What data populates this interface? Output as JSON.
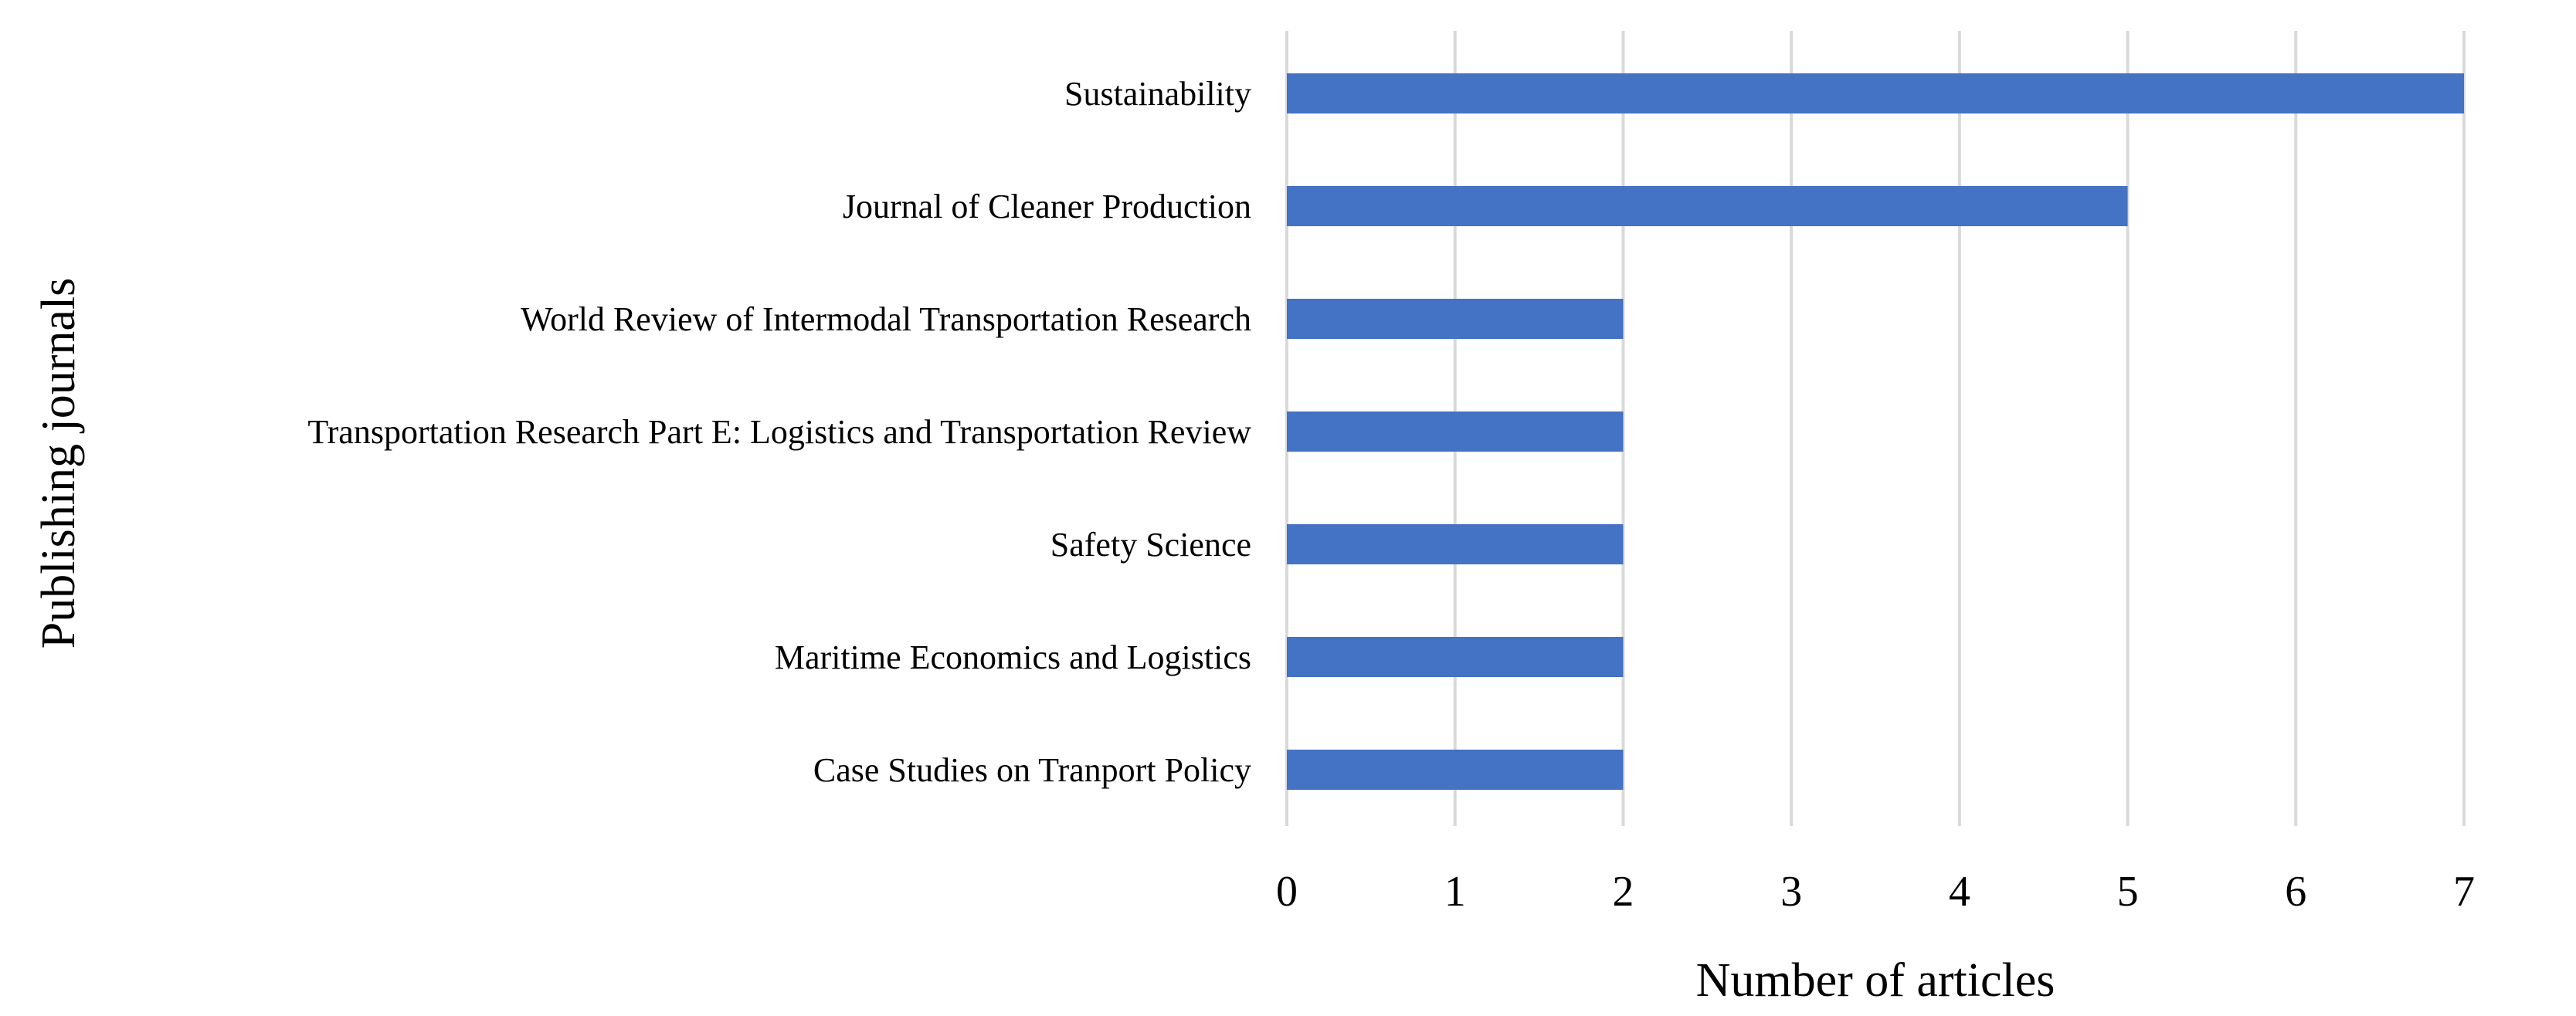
{
  "chart_data": {
    "type": "bar",
    "orientation": "horizontal",
    "categories": [
      "Sustainability",
      "Journal of Cleaner Production",
      "World Review of Intermodal Transportation Research",
      "Transportation Research Part E: Logistics and Transportation Review",
      "Safety Science",
      "Maritime Economics and Logistics",
      "Case Studies on Tranport Policy"
    ],
    "values": [
      7,
      5,
      2,
      2,
      2,
      2,
      2
    ],
    "title": "",
    "xlabel": "Number of articles",
    "ylabel": "Publishing journals",
    "xlim": [
      0,
      7
    ],
    "xticks": [
      "0",
      "1",
      "2",
      "3",
      "4",
      "5",
      "6",
      "7"
    ],
    "grid": "vertical",
    "legend": "none",
    "bar_color": "#4472c4"
  }
}
